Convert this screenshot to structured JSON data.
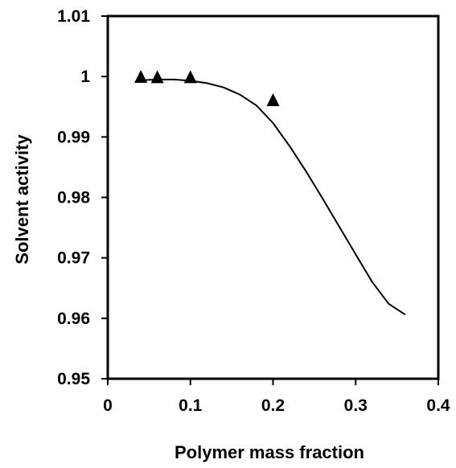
{
  "chart_data": {
    "type": "scatter",
    "title": "",
    "xlabel": "Polymer mass fraction",
    "ylabel": "Solvent activity",
    "xlim": [
      0,
      0.4
    ],
    "ylim": [
      0.95,
      1.01
    ],
    "x_ticks": [
      "0",
      "0.1",
      "0.2",
      "0.3",
      "0.4"
    ],
    "y_ticks": [
      "0.95",
      "0.96",
      "0.97",
      "0.98",
      "0.99",
      "1",
      "1.01"
    ],
    "grid": false,
    "legend": "none",
    "colors": {
      "axis": "#000000",
      "marker": "#000000",
      "line": "#000000"
    },
    "series": [
      {
        "kind": "scatter",
        "marker": "triangle",
        "x": [
          0.04,
          0.06,
          0.1,
          0.2
        ],
        "y": [
          0.99995,
          0.9999,
          0.9999,
          0.9961
        ]
      },
      {
        "kind": "line",
        "x": [
          0.04,
          0.06,
          0.08,
          0.1,
          0.12,
          0.14,
          0.16,
          0.18,
          0.2,
          0.22,
          0.24,
          0.26,
          0.28,
          0.3,
          0.32,
          0.34,
          0.36
        ],
        "y": [
          0.9994,
          0.9995,
          0.9995,
          0.9993,
          0.9989,
          0.9982,
          0.997,
          0.9952,
          0.9923,
          0.9885,
          0.9843,
          0.9798,
          0.9752,
          0.9706,
          0.966,
          0.9624,
          0.9606
        ]
      }
    ]
  }
}
